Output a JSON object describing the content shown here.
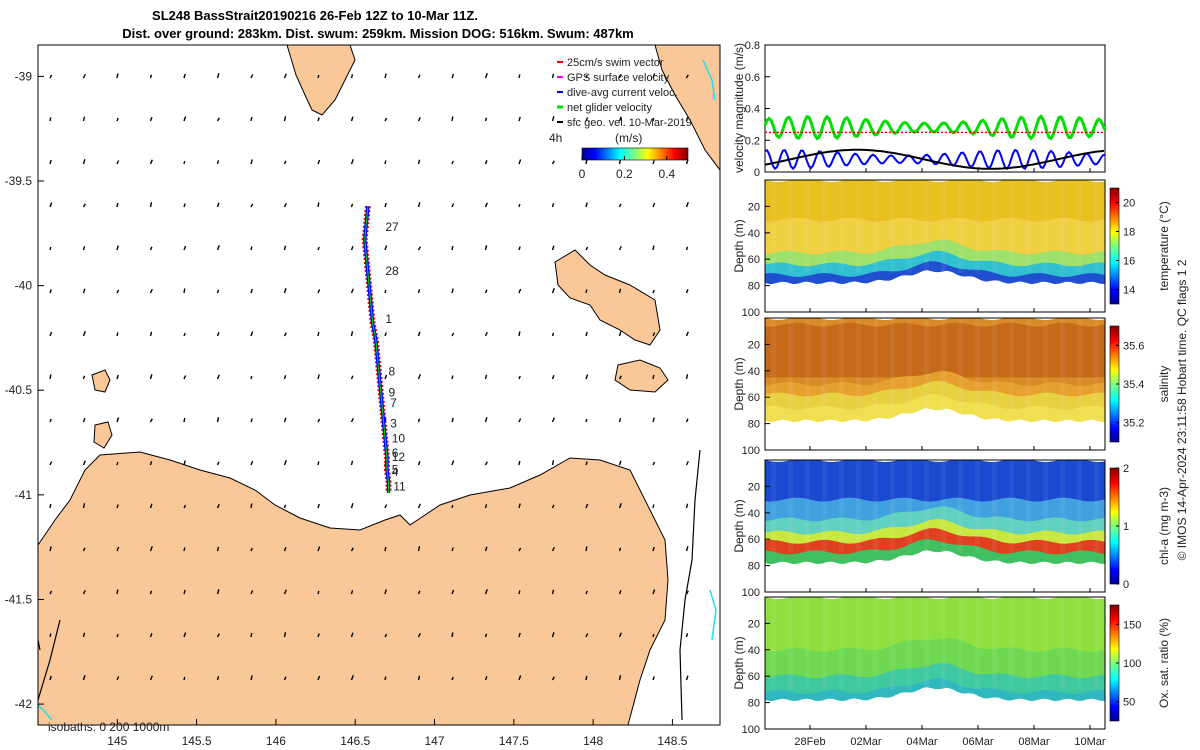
{
  "chart_data": [
    {
      "type": "map",
      "title": "SL248 BassStrait20190216 26-Feb 12Z to 10-Mar 11Z.",
      "subtitle": "Dist. over ground: 283km. Dist. swum: 259km. Mission DOG: 516km. Swum: 487km",
      "xlim": [
        144.5,
        148.8
      ],
      "ylim": [
        -42.1,
        -38.85
      ],
      "x_ticks": [
        145,
        145.5,
        146,
        146.5,
        147,
        147.5,
        148,
        148.5
      ],
      "x_tick_labels": [
        "145",
        "145.5",
        "146",
        "146.5",
        "147",
        "147.5",
        "148",
        "148.5"
      ],
      "y_ticks": [
        -39,
        -39.5,
        -40,
        -40.5,
        -41,
        -41.5,
        -42
      ],
      "y_tick_labels": [
        "-39",
        "-39.5",
        "-40",
        "-40.5",
        "-41",
        "-41.5",
        "-42"
      ],
      "legend": [
        {
          "label": "25cm/s swim vector",
          "color": "#ff0000"
        },
        {
          "label": "GPS surface velocity",
          "color": "#ff00ff"
        },
        {
          "label": "dive-avg current veloc.",
          "color": "#0000ff"
        },
        {
          "label": "net glider velocity",
          "color": "#00dd00"
        },
        {
          "label": "sfc geo. vel. 10-Mar-2019",
          "color": "#000000"
        }
      ],
      "legend_position": "top-right",
      "colorbar": {
        "title": "(m/s)",
        "ticks": [
          "0",
          "0.2",
          "0.4"
        ],
        "range": [
          0,
          0.5
        ]
      },
      "time_marker": "4h",
      "isobaths_label": "isobaths: 0   200  1000m",
      "day_labels": [
        {
          "label": "27",
          "lon": 146.69,
          "lat": -39.72
        },
        {
          "label": "28",
          "lon": 146.69,
          "lat": -39.93
        },
        {
          "label": "1",
          "lon": 146.69,
          "lat": -40.16
        },
        {
          "label": "8",
          "lon": 146.71,
          "lat": -40.41
        },
        {
          "label": "9",
          "lon": 146.71,
          "lat": -40.51
        },
        {
          "label": "7",
          "lon": 146.72,
          "lat": -40.56
        },
        {
          "label": "3",
          "lon": 146.72,
          "lat": -40.66
        },
        {
          "label": "10",
          "lon": 146.73,
          "lat": -40.73
        },
        {
          "label": "6",
          "lon": 146.73,
          "lat": -40.8
        },
        {
          "label": "12",
          "lon": 146.73,
          "lat": -40.82
        },
        {
          "label": "5",
          "lon": 146.73,
          "lat": -40.88
        },
        {
          "label": "4",
          "lon": 146.73,
          "lat": -40.89
        },
        {
          "label": "11",
          "lon": 146.74,
          "lat": -40.96
        }
      ],
      "track": {
        "lon": [
          146.58,
          146.57,
          146.56,
          146.57,
          146.58,
          146.59,
          146.6,
          146.61,
          146.63,
          146.64,
          146.65,
          146.66,
          146.67,
          146.68,
          146.69,
          146.7,
          146.7,
          146.71,
          146.71
        ],
        "lat": [
          -39.62,
          -39.7,
          -39.78,
          -39.86,
          -39.94,
          -40.02,
          -40.1,
          -40.18,
          -40.26,
          -40.34,
          -40.42,
          -40.5,
          -40.58,
          -40.66,
          -40.74,
          -40.82,
          -40.88,
          -40.94,
          -40.99
        ]
      }
    },
    {
      "type": "line",
      "ylabel": "velocity magnitude (m/s)",
      "ylim": [
        0,
        0.8
      ],
      "y_ticks": [
        "0",
        "0.2",
        "0.4",
        "0.6",
        "0.8"
      ],
      "series": [
        {
          "name": "net glider velocity",
          "color": "#00dd00",
          "mean": 0.28
        },
        {
          "name": "dive-avg current veloc.",
          "color": "#0000ff",
          "mean": 0.08
        },
        {
          "name": "sfc geo. vel.",
          "color": "#000000"
        },
        {
          "name": "25cm/s swim",
          "color": "#ff0000",
          "value": 0.25
        }
      ]
    },
    {
      "type": "heatmap",
      "ylabel": "Depth (m)",
      "colorbar_label": "temperature (°C)",
      "y_ticks": [
        "20",
        "40",
        "60",
        "80",
        "100"
      ],
      "cbar_ticks": [
        "20",
        "18",
        "16",
        "14"
      ],
      "cbar_range": [
        13,
        21
      ]
    },
    {
      "type": "heatmap",
      "ylabel": "Depth (m)",
      "colorbar_label": "salinity",
      "y_ticks": [
        "20",
        "40",
        "60",
        "80",
        "100"
      ],
      "cbar_ticks": [
        "35.6",
        "35.4",
        "35.2"
      ],
      "cbar_range": [
        35.1,
        35.7
      ]
    },
    {
      "type": "heatmap",
      "ylabel": "Depth (m)",
      "colorbar_label": "chl-a (mg m-3)",
      "y_ticks": [
        "20",
        "40",
        "60",
        "80",
        "100"
      ],
      "cbar_ticks": [
        "2",
        "1",
        "0"
      ],
      "cbar_range": [
        0,
        2
      ]
    },
    {
      "type": "heatmap",
      "ylabel": "Depth (m)",
      "colorbar_label": "Ox. sat. ratio (%)",
      "y_ticks": [
        "20",
        "40",
        "60",
        "80",
        "100"
      ],
      "cbar_ticks": [
        "150",
        "100",
        "50"
      ],
      "cbar_range": [
        25,
        175
      ],
      "x_tick_labels": [
        "28Feb",
        "02Mar",
        "04Mar",
        "06Mar",
        "08Mar",
        "10Mar"
      ]
    }
  ],
  "side_note": "© IMOS 14-Apr-2024 23:11:58 Hobart time. QC flags 1  2"
}
